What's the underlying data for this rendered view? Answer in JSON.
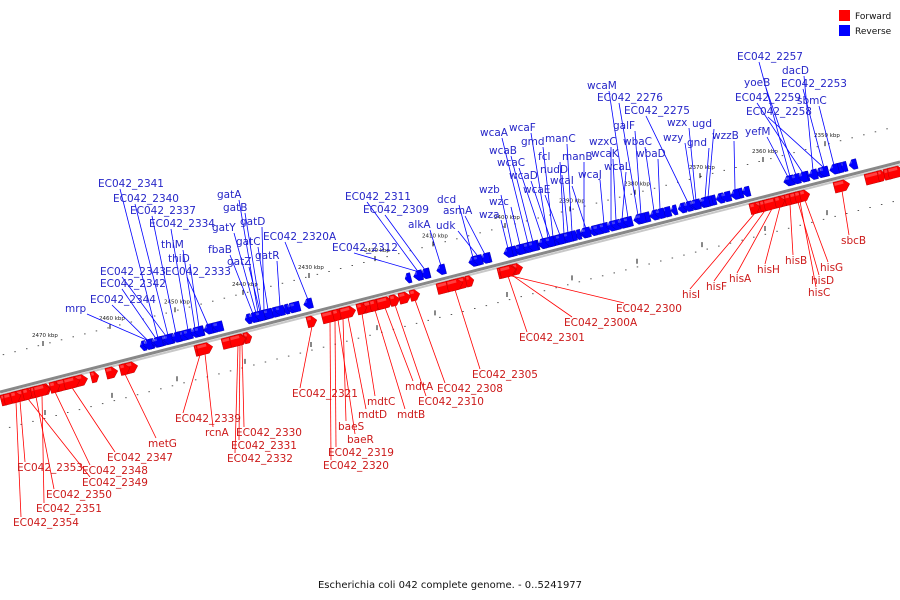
{
  "caption": "Escherichia coli 042 complete genome. - 0..5241977",
  "legend": [
    {
      "label": "Forward",
      "color": "#ff0000"
    },
    {
      "label": "Reverse",
      "color": "#0000ff"
    }
  ],
  "colors": {
    "forward": "#ff0000",
    "reverse": "#0000ff",
    "forward_label": "#cc1a1a",
    "reverse_label": "#2626c8",
    "axis": "#888888"
  },
  "ticks": [
    "2470 kbp",
    "2460 kbp",
    "2450 kbp",
    "2440 kbp",
    "2430 kbp",
    "2420 kbp",
    "2410 kbp",
    "2400 kbp",
    "2390 kbp",
    "2380 kbp",
    "2370 kbp",
    "2360 kbp",
    "2350 kbp"
  ],
  "reverse_genes": [
    "mrp",
    "EC042_2344",
    "EC042_2342",
    "EC042_2343",
    "EC042_2341",
    "EC042_2340",
    "EC042_2337",
    "EC042_2334",
    "thiM",
    "thiD",
    "EC042_2333",
    "gatA",
    "gatB",
    "gatY",
    "gatD",
    "fbaB",
    "gatC",
    "gatZ",
    "gatR",
    "EC042_2320A",
    "EC042_2311",
    "EC042_2309",
    "EC042_2312",
    "alkA",
    "dcd",
    "asmA",
    "udk",
    "wzb",
    "wzc",
    "wza",
    "wcaA",
    "wcaB",
    "wcaF",
    "gmd",
    "wcaC",
    "wcaD",
    "fcl",
    "manC",
    "nudD",
    "wcaE",
    "manB",
    "wcaI",
    "wcaJ",
    "wzxC",
    "wcaK",
    "wcaL",
    "wcaM",
    "EC042_2276",
    "galF",
    "wbaC",
    "wbaD",
    "EC042_2275",
    "wzy",
    "wzx",
    "ugd",
    "gnd",
    "wzzB",
    "yefM",
    "EC042_2257",
    "yoeB",
    "dacD",
    "EC042_2259",
    "EC042_2253",
    "sbmC",
    "EC042_2258"
  ],
  "forward_genes": [
    "EC042_2353",
    "EC042_2349",
    "EC042_2350",
    "EC042_2351",
    "EC042_2354",
    "EC042_2348",
    "EC042_2347",
    "metG",
    "EC042_2339",
    "rcnA",
    "EC042_2330",
    "EC042_2331",
    "EC042_2332",
    "EC042_2321",
    "EC042_2319",
    "EC042_2320",
    "baeS",
    "baeR",
    "mdtD",
    "mdtC",
    "mdtB",
    "mdtA",
    "EC042_2310",
    "EC042_2308",
    "EC042_2305",
    "EC042_2300",
    "EC042_2300A",
    "EC042_2301",
    "hisI",
    "hisF",
    "hisA",
    "hisH",
    "hisB",
    "hisD",
    "hisC",
    "hisG",
    "sbcB"
  ]
}
